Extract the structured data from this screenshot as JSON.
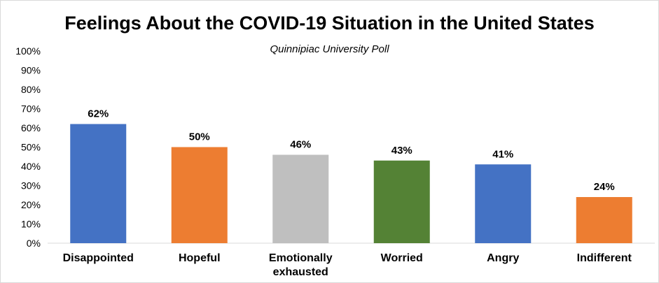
{
  "chart_data": {
    "type": "bar",
    "title": "Feelings About the COVID-19 Situation in the United States",
    "subtitle": "Quinnipiac University Poll",
    "categories": [
      "Disappointed",
      "Hopeful",
      "Emotionally exhausted",
      "Worried",
      "Angry",
      "Indifferent"
    ],
    "category_lines": [
      [
        "Disappointed"
      ],
      [
        "Hopeful"
      ],
      [
        "Emotionally",
        "exhausted"
      ],
      [
        "Worried"
      ],
      [
        "Angry"
      ],
      [
        "Indifferent"
      ]
    ],
    "values": [
      62,
      50,
      46,
      43,
      41,
      24
    ],
    "data_labels": [
      "62%",
      "50%",
      "46%",
      "43%",
      "41%",
      "24%"
    ],
    "colors": [
      "#4472C4",
      "#ED7D31",
      "#BFBFBF",
      "#548235",
      "#4472C4",
      "#ED7D31"
    ],
    "ylim": [
      0,
      100
    ],
    "yticks": [
      0,
      10,
      20,
      30,
      40,
      50,
      60,
      70,
      80,
      90,
      100
    ],
    "ytick_labels": [
      "0%",
      "10%",
      "20%",
      "30%",
      "40%",
      "50%",
      "60%",
      "70%",
      "80%",
      "90%",
      "100%"
    ],
    "grid": false,
    "legend": "none"
  }
}
